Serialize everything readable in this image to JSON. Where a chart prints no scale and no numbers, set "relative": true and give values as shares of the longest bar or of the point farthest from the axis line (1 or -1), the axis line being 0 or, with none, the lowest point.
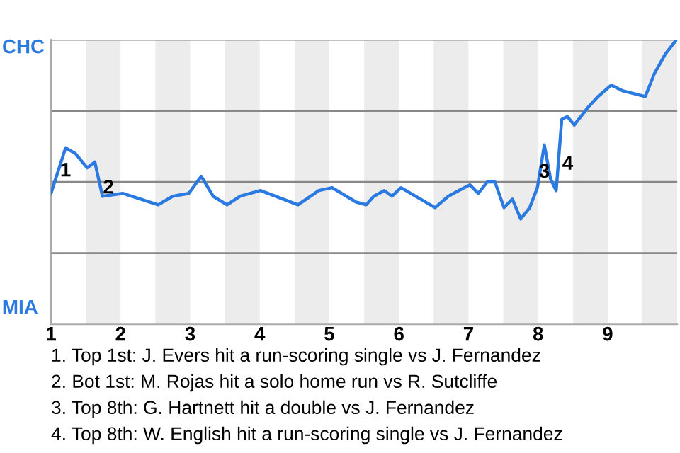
{
  "chart_data": {
    "type": "line",
    "relative": true,
    "xlim": [
      1,
      10
    ],
    "xticks": [
      1,
      2,
      3,
      4,
      5,
      6,
      7,
      8,
      9
    ],
    "grid": "y",
    "marker": "none",
    "line_style": "solid",
    "series": [
      {
        "color": "#2a7ae2",
        "x": [
          1.0,
          1.21,
          1.35,
          1.52,
          1.63,
          1.74,
          2.03,
          2.54,
          2.75,
          2.98,
          3.16,
          3.33,
          3.53,
          3.72,
          4.01,
          4.55,
          4.85,
          5.04,
          5.38,
          5.53,
          5.64,
          5.79,
          5.9,
          6.03,
          6.52,
          6.71,
          6.86,
          7.02,
          7.14,
          7.27,
          7.38,
          7.51,
          7.63,
          7.75,
          7.88,
          7.99,
          8.09,
          8.18,
          8.26,
          8.34,
          8.42,
          8.52,
          8.71,
          8.86,
          9.05,
          9.22,
          9.54,
          9.67,
          9.83,
          9.99
        ],
        "values": [
          0.46,
          0.62,
          0.6,
          0.55,
          0.57,
          0.45,
          0.46,
          0.42,
          0.45,
          0.46,
          0.52,
          0.45,
          0.42,
          0.45,
          0.47,
          0.42,
          0.47,
          0.48,
          0.43,
          0.42,
          0.45,
          0.47,
          0.45,
          0.48,
          0.41,
          0.45,
          0.47,
          0.49,
          0.46,
          0.5,
          0.5,
          0.41,
          0.44,
          0.37,
          0.41,
          0.48,
          0.63,
          0.51,
          0.47,
          0.72,
          0.73,
          0.7,
          0.76,
          0.8,
          0.84,
          0.82,
          0.8,
          0.88,
          0.95,
          1.0
        ]
      }
    ],
    "bands": [
      {
        "axis": "x",
        "from": 1.5,
        "to": 2,
        "color": "#ececec"
      },
      {
        "axis": "x",
        "from": 2.5,
        "to": 3,
        "color": "#ececec"
      },
      {
        "axis": "x",
        "from": 3.5,
        "to": 4,
        "color": "#ececec"
      },
      {
        "axis": "x",
        "from": 4.5,
        "to": 5,
        "color": "#ececec"
      },
      {
        "axis": "x",
        "from": 5.5,
        "to": 6,
        "color": "#ececec"
      },
      {
        "axis": "x",
        "from": 6.5,
        "to": 7,
        "color": "#ececec"
      },
      {
        "axis": "x",
        "from": 7.5,
        "to": 8,
        "color": "#ececec"
      },
      {
        "axis": "x",
        "from": 8.5,
        "to": 9,
        "color": "#ececec"
      },
      {
        "axis": "x",
        "from": 9.5,
        "to": 10,
        "color": "#ececec"
      }
    ],
    "annotations": [
      "CHC",
      "MIA",
      {
        "text": "1",
        "x": 1.21,
        "y": 0.62
      },
      {
        "text": "2",
        "x": 1.74,
        "y": 0.45
      },
      {
        "text": "3",
        "x": 8.09,
        "y": 0.63
      },
      {
        "text": "4",
        "x": 8.34,
        "y": 0.72
      },
      "1. Top 1st: J. Evers hit a run-scoring single vs J. Fernandez",
      "2. Bot 1st: M. Rojas hit a solo home run vs R. Sutcliffe",
      "3. Top 8th: G. Hartnett hit a double vs J. Fernandez",
      "4. Top 8th: W. English hit a run-scoring single vs J. Fernandez"
    ]
  }
}
